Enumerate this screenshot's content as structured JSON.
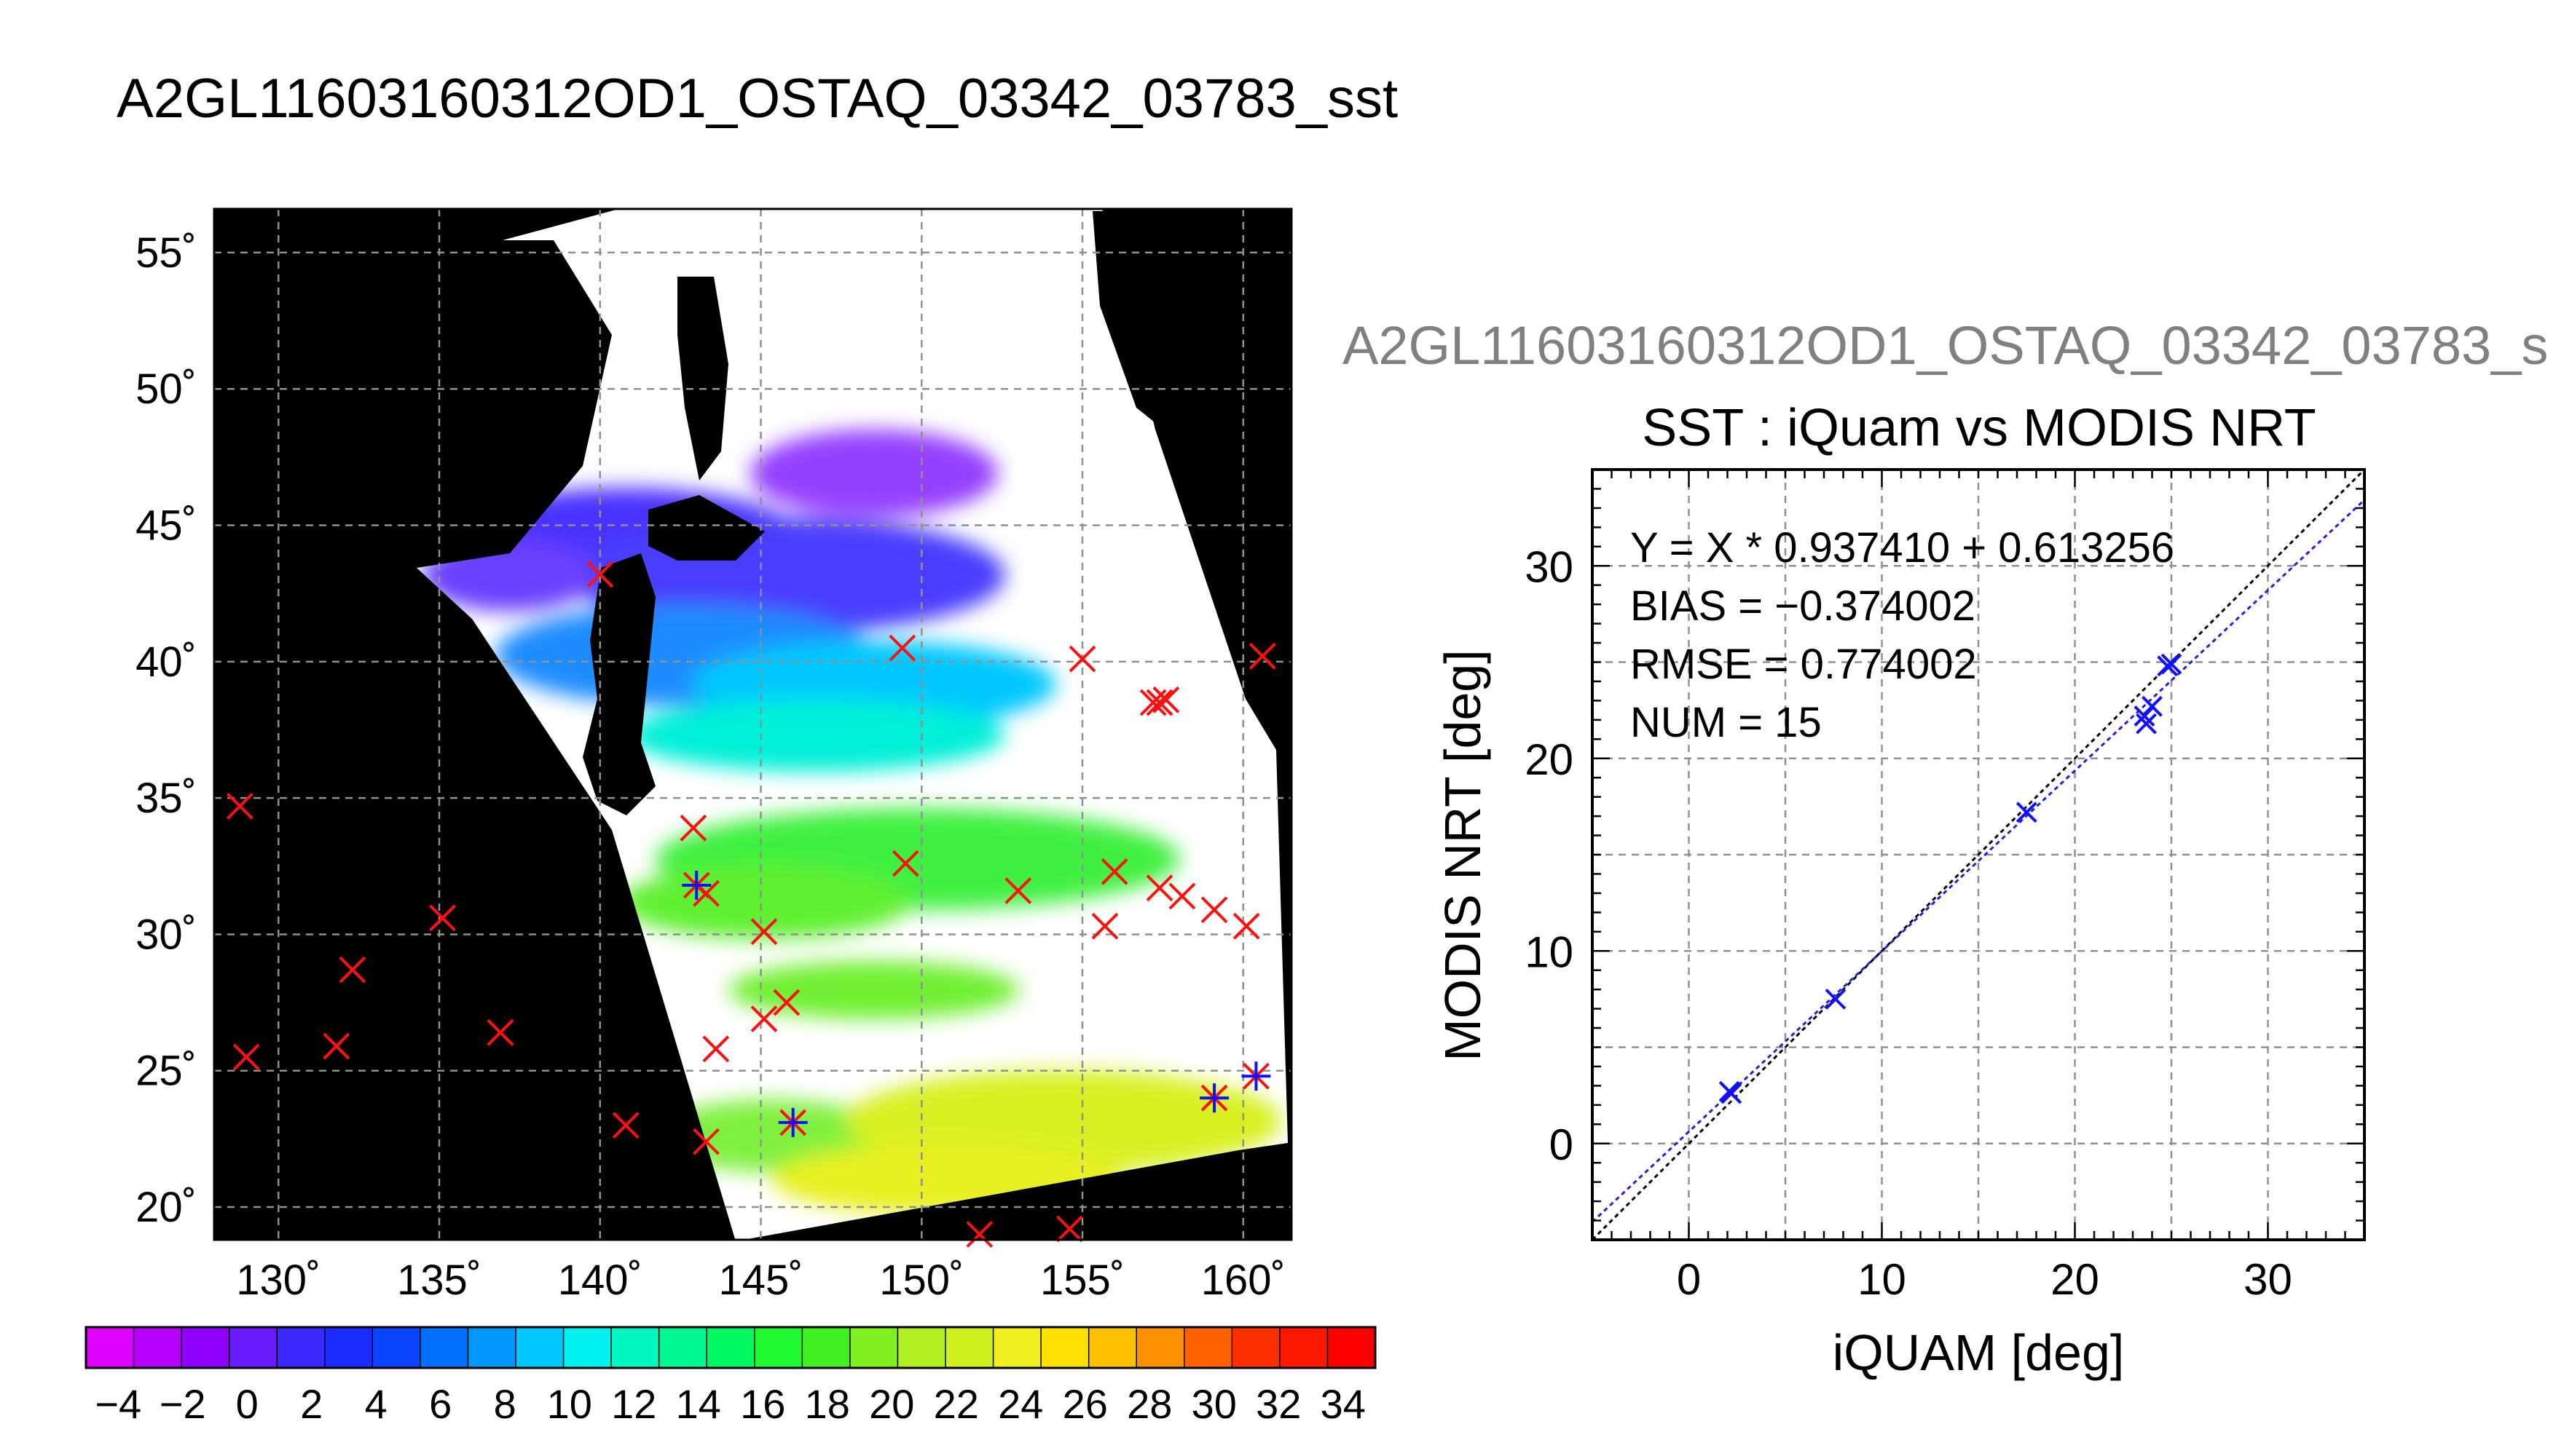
{
  "title": "A2GL11603160312OD1_OSTAQ_03342_03783_sst",
  "scatter_subtitle": "A2GL11603160312OD1_OSTAQ_03342_03783_s",
  "colors": {
    "map_background": "#000000",
    "grid": "#909090",
    "marker_red": "#ff1010",
    "marker_blue": "#1010ff",
    "fit_line": "#2020e0",
    "identity_line": "#000000"
  },
  "chart_data": [
    {
      "type": "map",
      "title": "",
      "x_ticks": [
        "130˚",
        "135˚",
        "140˚",
        "145˚",
        "150˚",
        "155˚",
        "160˚"
      ],
      "y_ticks": [
        "55˚",
        "50˚",
        "45˚",
        "40˚",
        "35˚",
        "30˚",
        "25˚",
        "20˚"
      ],
      "lon_values": [
        130,
        135,
        140,
        145,
        150,
        155,
        160
      ],
      "lat_values": [
        55,
        50,
        45,
        40,
        35,
        30,
        25,
        20
      ],
      "lon_range": [
        128,
        161.5
      ],
      "lat_range": [
        18.8,
        56.6
      ],
      "grid": true,
      "matchups_red": [
        [
          128.8,
          34.7
        ],
        [
          129.0,
          25.5
        ],
        [
          131.8,
          25.9
        ],
        [
          132.3,
          28.7
        ],
        [
          135.1,
          30.6
        ],
        [
          136.9,
          26.4
        ],
        [
          140.0,
          43.2
        ],
        [
          140.8,
          23.0
        ],
        [
          142.9,
          33.9
        ],
        [
          143.0,
          31.8
        ],
        [
          143.3,
          31.5
        ],
        [
          143.3,
          22.4
        ],
        [
          143.6,
          25.8
        ],
        [
          145.1,
          30.1
        ],
        [
          145.1,
          26.9
        ],
        [
          145.8,
          27.5
        ],
        [
          146.0,
          23.1
        ],
        [
          149.4,
          40.5
        ],
        [
          149.5,
          32.6
        ],
        [
          151.8,
          19.0
        ],
        [
          153.0,
          31.6
        ],
        [
          154.6,
          19.2
        ],
        [
          155.0,
          40.1
        ],
        [
          155.7,
          30.3
        ],
        [
          156.0,
          32.3
        ],
        [
          157.2,
          38.5
        ],
        [
          157.4,
          38.5
        ],
        [
          157.6,
          38.6
        ],
        [
          157.4,
          31.7
        ],
        [
          158.1,
          31.4
        ],
        [
          159.1,
          30.9
        ],
        [
          159.1,
          24.0
        ],
        [
          160.1,
          30.3
        ],
        [
          160.4,
          24.8
        ],
        [
          160.6,
          40.2
        ]
      ],
      "matchups_blue": [
        [
          143.0,
          31.8
        ],
        [
          146.0,
          23.1
        ],
        [
          159.1,
          24.0
        ],
        [
          160.4,
          24.8
        ]
      ]
    },
    {
      "type": "scatter",
      "title": "SST : iQuam vs MODIS NRT",
      "xlabel": "iQUAM [deg]",
      "ylabel": "MODIS NRT [deg]",
      "xlim": [
        -5,
        35
      ],
      "ylim": [
        -5,
        35
      ],
      "x_ticks": [
        "0",
        "10",
        "20",
        "30"
      ],
      "y_ticks": [
        "0",
        "10",
        "20",
        "30"
      ],
      "tick_values": [
        0,
        10,
        20,
        30
      ],
      "grid": true,
      "stats": [
        "Y = X * 0.937410 + 0.613256",
        "BIAS = −0.374002",
        "RMSE = 0.774002",
        "NUM = 15"
      ],
      "fit": {
        "slope": 0.93741,
        "intercept": 0.613256
      },
      "points": [
        [
          2.1,
          2.7
        ],
        [
          2.2,
          2.6
        ],
        [
          7.6,
          7.5
        ],
        [
          17.5,
          17.2
        ],
        [
          23.6,
          22.2
        ],
        [
          23.7,
          21.8
        ],
        [
          24.0,
          22.7
        ],
        [
          24.8,
          24.8
        ],
        [
          25.0,
          24.9
        ]
      ]
    },
    {
      "type": "colorbar",
      "range": [
        -5,
        35
      ],
      "tick_labels": [
        "−4",
        "−2",
        "0",
        "2",
        "4",
        "6",
        "8",
        "10",
        "12",
        "14",
        "16",
        "18",
        "20",
        "22",
        "24",
        "26",
        "28",
        "30",
        "32",
        "34"
      ],
      "tick_values": [
        -4,
        -2,
        0,
        2,
        4,
        6,
        8,
        10,
        12,
        14,
        16,
        18,
        20,
        22,
        24,
        26,
        28,
        30,
        32,
        34
      ],
      "segment_colors": [
        "#e000ff",
        "#b800ff",
        "#9000ff",
        "#6a1cff",
        "#3a28ff",
        "#1a2cff",
        "#0a44ff",
        "#0070ff",
        "#0098ff",
        "#00c8ff",
        "#00f0f0",
        "#00f8c0",
        "#00f890",
        "#00f860",
        "#20f830",
        "#40f020",
        "#80f020",
        "#b0f020",
        "#d0f020",
        "#f0f020",
        "#ffe000",
        "#ffc000",
        "#ff9000",
        "#ff6000",
        "#ff3000",
        "#ff1800",
        "#ff0000"
      ]
    }
  ]
}
